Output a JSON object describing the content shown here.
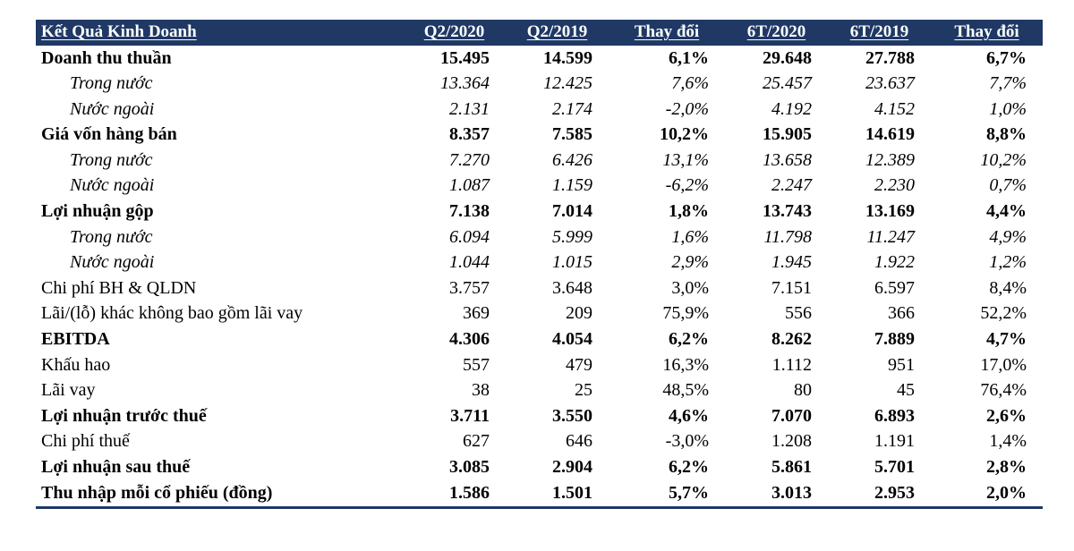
{
  "table": {
    "header": {
      "label": "Kết Quả Kinh Doanh",
      "columns": [
        "Q2/2020",
        "Q2/2019",
        "Thay đổi",
        "6T/2020",
        "6T/2019",
        "Thay đổi"
      ]
    },
    "rows": [
      {
        "label": "Doanh thu thuần",
        "style": "bold",
        "values": [
          "15.495",
          "14.599",
          "6,1%",
          "29.648",
          "27.788",
          "6,7%"
        ]
      },
      {
        "label": "Trong nước",
        "style": "sub",
        "values": [
          "13.364",
          "12.425",
          "7,6%",
          "25.457",
          "23.637",
          "7,7%"
        ]
      },
      {
        "label": "Nước ngoài",
        "style": "sub",
        "values": [
          "2.131",
          "2.174",
          "-2,0%",
          "4.192",
          "4.152",
          "1,0%"
        ]
      },
      {
        "label": "Giá vốn hàng bán",
        "style": "bold",
        "values": [
          "8.357",
          "7.585",
          "10,2%",
          "15.905",
          "14.619",
          "8,8%"
        ]
      },
      {
        "label": "Trong nước",
        "style": "sub",
        "values": [
          "7.270",
          "6.426",
          "13,1%",
          "13.658",
          "12.389",
          "10,2%"
        ]
      },
      {
        "label": "Nước ngoài",
        "style": "sub",
        "values": [
          "1.087",
          "1.159",
          "-6,2%",
          "2.247",
          "2.230",
          "0,7%"
        ]
      },
      {
        "label": "Lợi nhuận gộp",
        "style": "bold",
        "values": [
          "7.138",
          "7.014",
          "1,8%",
          "13.743",
          "13.169",
          "4,4%"
        ]
      },
      {
        "label": "Trong nước",
        "style": "sub",
        "values": [
          "6.094",
          "5.999",
          "1,6%",
          "11.798",
          "11.247",
          "4,9%"
        ]
      },
      {
        "label": "Nước ngoài",
        "style": "sub",
        "values": [
          "1.044",
          "1.015",
          "2,9%",
          "1.945",
          "1.922",
          "1,2%"
        ]
      },
      {
        "label": "Chi phí BH & QLDN",
        "style": "normal",
        "values": [
          "3.757",
          "3.648",
          "3,0%",
          "7.151",
          "6.597",
          "8,4%"
        ]
      },
      {
        "label": "Lãi/(lỗ) khác không bao gồm lãi vay",
        "style": "normal",
        "values": [
          "369",
          "209",
          "75,9%",
          "556",
          "366",
          "52,2%"
        ]
      },
      {
        "label": "EBITDA",
        "style": "bold",
        "values": [
          "4.306",
          "4.054",
          "6,2%",
          "8.262",
          "7.889",
          "4,7%"
        ]
      },
      {
        "label": "Khấu hao",
        "style": "normal",
        "values": [
          "557",
          "479",
          "16,3%",
          "1.112",
          "951",
          "17,0%"
        ]
      },
      {
        "label": "Lãi vay",
        "style": "normal",
        "values": [
          "38",
          "25",
          "48,5%",
          "80",
          "45",
          "76,4%"
        ]
      },
      {
        "label": "Lợi nhuận trước thuế",
        "style": "bold",
        "values": [
          "3.711",
          "3.550",
          "4,6%",
          "7.070",
          "6.893",
          "2,6%"
        ]
      },
      {
        "label": "Chi phí thuế",
        "style": "normal",
        "values": [
          "627",
          "646",
          "-3,0%",
          "1.208",
          "1.191",
          "1,4%"
        ]
      },
      {
        "label": "Lợi nhuận sau thuế",
        "style": "bold",
        "values": [
          "3.085",
          "2.904",
          "6,2%",
          "5.861",
          "5.701",
          "2,8%"
        ]
      },
      {
        "label": "Thu nhập mỗi cổ phiếu (đồng)",
        "style": "bold",
        "values": [
          "1.586",
          "1.501",
          "5,7%",
          "3.013",
          "2.953",
          "2,0%"
        ]
      }
    ],
    "colors": {
      "header_bg": "#1F3864",
      "header_text": "#FFFFFF",
      "body_text": "#000000",
      "border": "#1F3864"
    }
  }
}
